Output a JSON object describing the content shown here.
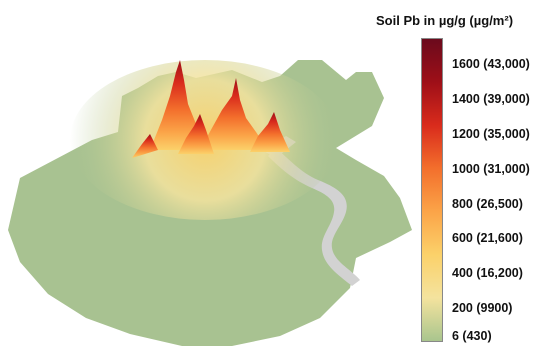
{
  "legend": {
    "title": "Soil Pb in µg/g (µg/m²)",
    "min_value": 6,
    "max_value": 1750,
    "ticks": [
      {
        "value": 1600,
        "label": "1600 (43,000)"
      },
      {
        "value": 1400,
        "label": "1400 (39,000)"
      },
      {
        "value": 1200,
        "label": "1200 (35,000)"
      },
      {
        "value": 1000,
        "label": "1000 (31,000)"
      },
      {
        "value": 800,
        "label": "800 (26,500)"
      },
      {
        "value": 600,
        "label": "600 (21,600)"
      },
      {
        "value": 400,
        "label": "400 (16,200)"
      },
      {
        "value": 200,
        "label": "200 (9900)"
      },
      {
        "value": 6,
        "label": "6 (430)"
      }
    ],
    "color_stops": [
      "#a9c58e",
      "#f4e39e",
      "#fbd16a",
      "#fba448",
      "#f36f2c",
      "#d92b1c",
      "#9e0f18",
      "#6b0a1c"
    ]
  },
  "map": {
    "land_color": "#a8c291",
    "water_color": "#d2d2d2",
    "peaks": [
      {
        "label": "primary-peak",
        "value": 1750
      },
      {
        "label": "secondary-peak",
        "value": 1300
      },
      {
        "label": "tertiary-peak",
        "value": 1000
      }
    ]
  }
}
